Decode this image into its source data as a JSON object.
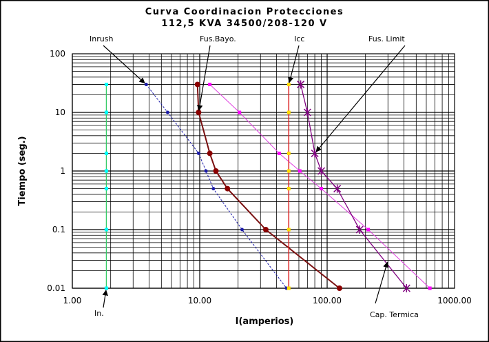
{
  "chart_data": {
    "type": "line",
    "title": "Curva Coordinacion Protecciones",
    "subtitle": "112,5 KVA 34500/208-120 V",
    "xlabel": "I(amperios)",
    "ylabel": "Tiempo (seg.)",
    "xscale": "log",
    "yscale": "log",
    "xlim": [
      1,
      1000
    ],
    "ylim": [
      0.01,
      100
    ],
    "x_ticks": [
      "1.00",
      "10.00",
      "100.00",
      "1000.00"
    ],
    "y_ticks": [
      "0.01",
      "0.1",
      "1",
      "10",
      "100"
    ],
    "grid": true,
    "series": [
      {
        "name": "In.",
        "color": "#33cc66",
        "marker_color": "#00ffff",
        "marker": "square",
        "width": 1.3,
        "points": [
          [
            1.85,
            30
          ],
          [
            1.85,
            10
          ],
          [
            1.85,
            2
          ],
          [
            1.85,
            1
          ],
          [
            1.85,
            0.5
          ],
          [
            1.85,
            0.1
          ],
          [
            1.85,
            0.01
          ]
        ]
      },
      {
        "name": "Inrush",
        "color": "#1a1aa8",
        "marker_color": "#1a1aa8",
        "marker": "circle",
        "width": 1,
        "dash": "3,2",
        "points": [
          [
            3.8,
            30
          ],
          [
            5.6,
            10
          ],
          [
            9.8,
            2
          ],
          [
            11.2,
            1
          ],
          [
            12.8,
            0.5
          ],
          [
            21.5,
            0.1
          ],
          [
            48,
            0.01
          ]
        ]
      },
      {
        "name": "Fus.Bayo.",
        "color": "#7a1010",
        "marker_color": "#8b0000",
        "marker": "circle",
        "width": 2,
        "points": [
          [
            9.6,
            30
          ],
          [
            9.8,
            10
          ],
          [
            12,
            2
          ],
          [
            13.4,
            1
          ],
          [
            16.5,
            0.5
          ],
          [
            33,
            0.1
          ],
          [
            125,
            0.01
          ]
        ]
      },
      {
        "name": "Cap. Termica",
        "color": "#e040e0",
        "marker_color": "#ff00ff",
        "marker": "square",
        "width": 1,
        "points": [
          [
            12,
            30
          ],
          [
            20.5,
            10
          ],
          [
            42,
            2
          ],
          [
            61,
            1
          ],
          [
            90,
            0.5
          ],
          [
            210,
            0.1
          ],
          [
            640,
            0.01
          ]
        ]
      },
      {
        "name": "Icc",
        "color": "#dd2222",
        "marker_color": "#ffdd00",
        "marker": "square",
        "width": 1.5,
        "points": [
          [
            50,
            30
          ],
          [
            50,
            10
          ],
          [
            50,
            2
          ],
          [
            50,
            1
          ],
          [
            50,
            0.5
          ],
          [
            50,
            0.1
          ],
          [
            50,
            0.01
          ]
        ]
      },
      {
        "name": "Fus. Limit",
        "color": "#800080",
        "marker_color": "#800080",
        "marker": "star",
        "width": 1.3,
        "points": [
          [
            62,
            30
          ],
          [
            70,
            10
          ],
          [
            80,
            2
          ],
          [
            90,
            1
          ],
          [
            120,
            0.5
          ],
          [
            180,
            0.1
          ],
          [
            420,
            0.01
          ]
        ]
      }
    ],
    "annotations": [
      {
        "text": "Inrush",
        "target": [
          3.8,
          30
        ]
      },
      {
        "text": "Fus.Bayo.",
        "target": [
          9.8,
          10
        ]
      },
      {
        "text": "Icc",
        "target": [
          50,
          30
        ]
      },
      {
        "text": "Fus. Limit",
        "target": [
          80,
          2
        ]
      },
      {
        "text": "Cap. Termica",
        "target": [
          300,
          0.03
        ]
      },
      {
        "text": "In.",
        "target": [
          1.85,
          0.01
        ]
      }
    ]
  }
}
